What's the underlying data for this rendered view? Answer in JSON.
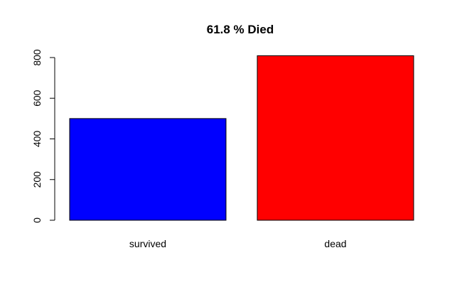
{
  "chart_data": {
    "type": "bar",
    "title": "61.8 % Died",
    "xlabel": "",
    "ylabel": "",
    "categories": [
      "survived",
      "dead"
    ],
    "values": [
      500,
      809
    ],
    "colors": [
      "#0000ff",
      "#ff0000"
    ],
    "ylim": [
      0,
      850
    ],
    "yticks": [
      0,
      200,
      400,
      600,
      800
    ],
    "grid": false,
    "legend": "none"
  }
}
